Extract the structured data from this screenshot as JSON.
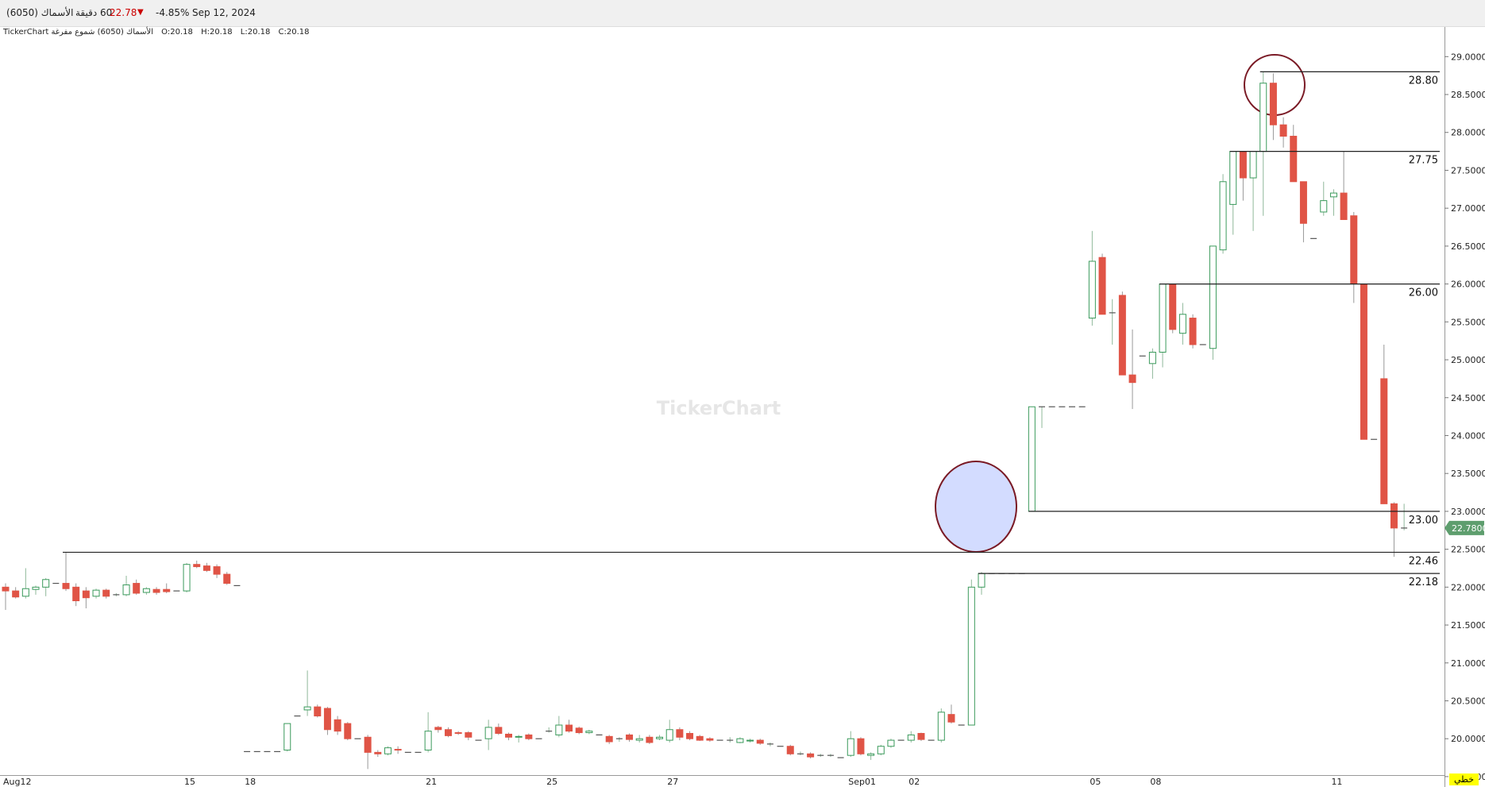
{
  "header": {
    "symbol": "الأسماك (6050)",
    "interval": "60 دقيقة",
    "price": "22.78",
    "change": "-4.85%",
    "date": "Sep 12, 2024",
    "legend": "TickerChart الأسماك (6050) شموع مفرغة",
    "open": "O:20.18",
    "high": "H:20.18",
    "low": "L:20.18",
    "close": "C:20.18"
  },
  "watermark": "TickerChart",
  "mode_button": "خطي",
  "chart_data": {
    "type": "candlestick",
    "up_color": "#3a9a5b",
    "down_color": "#e05446",
    "flat_color": "#555555",
    "ylim": [
      19.52,
      29.37
    ],
    "yticks": [
      {
        "value": 19.5,
        "label": "19.5000"
      },
      {
        "value": 20,
        "label": "20.0000"
      },
      {
        "value": 20.5,
        "label": "20.5000"
      },
      {
        "value": 21,
        "label": "21.0000"
      },
      {
        "value": 21.5,
        "label": "21.5000"
      },
      {
        "value": 22,
        "label": "22.0000"
      },
      {
        "value": 22.5,
        "label": "22.5000"
      },
      {
        "value": 23,
        "label": "23.0000"
      },
      {
        "value": 23.5,
        "label": "23.5000"
      },
      {
        "value": 24,
        "label": "24.0000"
      },
      {
        "value": 24.5,
        "label": "24.5000"
      },
      {
        "value": 25,
        "label": "25.0000"
      },
      {
        "value": 25.5,
        "label": "25.5000"
      },
      {
        "value": 26,
        "label": "26.0000"
      },
      {
        "value": 26.5,
        "label": "26.5000"
      },
      {
        "value": 27,
        "label": "27.0000"
      },
      {
        "value": 27.5,
        "label": "27.5000"
      },
      {
        "value": 28,
        "label": "28.0000"
      },
      {
        "value": 28.5,
        "label": "28.5000"
      },
      {
        "value": 29,
        "label": "29.0000"
      }
    ],
    "last_price": {
      "value": 22.78,
      "label": "22.7800",
      "color": "#5e9e6e"
    },
    "levels": [
      {
        "value": 28.8,
        "label": "28.80"
      },
      {
        "value": 27.75,
        "label": "27.75"
      },
      {
        "value": 26,
        "label": "26.00"
      },
      {
        "value": 23,
        "label": "23.00"
      },
      {
        "value": 22.46,
        "label": "22.46"
      },
      {
        "value": 22.18,
        "label": "22.18"
      }
    ],
    "categories": [
      "Aug12",
      null,
      null,
      null,
      null,
      null,
      null,
      null,
      null,
      null,
      null,
      null,
      null,
      null,
      null,
      null,
      null,
      null,
      "15",
      null,
      null,
      null,
      null,
      null,
      "18",
      null,
      null,
      null,
      null,
      null,
      null,
      null,
      null,
      null,
      null,
      null,
      null,
      null,
      null,
      null,
      null,
      null,
      "21",
      null,
      null,
      null,
      null,
      null,
      null,
      null,
      null,
      null,
      null,
      null,
      "25",
      null,
      null,
      null,
      null,
      null,
      null,
      null,
      null,
      null,
      null,
      null,
      "27",
      null,
      null,
      null,
      null,
      null,
      null,
      null,
      null,
      null,
      null,
      null,
      null,
      null,
      null,
      null,
      null,
      null,
      "Sep01",
      null,
      null,
      null,
      null,
      null,
      "02",
      null,
      null,
      null,
      null,
      null,
      null,
      null,
      null,
      null,
      null,
      null,
      null,
      null,
      null,
      null,
      null,
      null,
      "05",
      null,
      null,
      null,
      null,
      null,
      "08",
      null,
      null,
      null,
      null,
      null,
      null,
      null,
      null,
      null,
      null,
      null,
      null,
      null,
      null,
      null,
      null,
      null,
      "11",
      null,
      null,
      null,
      null,
      null,
      null,
      null
    ],
    "ohlc": [
      [
        22.0,
        22.05,
        21.7,
        21.95
      ],
      [
        21.95,
        22.0,
        21.85,
        21.87
      ],
      [
        21.88,
        22.25,
        21.85,
        21.98
      ],
      [
        21.97,
        22.02,
        21.9,
        22.0
      ],
      [
        22.0,
        22.12,
        21.88,
        22.1
      ],
      [
        22.05,
        22.05,
        22.05,
        22.05
      ],
      [
        22.05,
        22.46,
        21.95,
        21.98
      ],
      [
        22.0,
        22.05,
        21.75,
        21.82
      ],
      [
        21.95,
        22.0,
        21.72,
        21.86
      ],
      [
        21.88,
        21.98,
        21.85,
        21.96
      ],
      [
        21.96,
        21.98,
        21.85,
        21.88
      ],
      [
        21.9,
        21.92,
        21.88,
        21.9
      ],
      [
        21.9,
        22.15,
        21.88,
        22.03
      ],
      [
        22.05,
        22.1,
        21.9,
        21.92
      ],
      [
        21.93,
        22.0,
        21.9,
        21.98
      ],
      [
        21.97,
        22.0,
        21.9,
        21.93
      ],
      [
        21.97,
        22.05,
        21.92,
        21.94
      ],
      [
        21.95,
        21.95,
        21.95,
        21.95
      ],
      [
        21.95,
        22.32,
        21.93,
        22.3
      ],
      [
        22.3,
        22.35,
        22.25,
        22.27
      ],
      [
        22.28,
        22.32,
        22.2,
        22.22
      ],
      [
        22.27,
        22.3,
        22.12,
        22.17
      ],
      [
        22.17,
        22.2,
        22.03,
        22.05
      ],
      [
        22.02,
        22.02,
        22.02,
        22.02
      ],
      [
        19.83,
        19.83,
        19.83,
        19.83
      ],
      [
        19.83,
        19.83,
        19.83,
        19.83
      ],
      [
        19.83,
        19.83,
        19.83,
        19.83
      ],
      [
        19.83,
        19.83,
        19.83,
        19.83
      ],
      [
        19.85,
        20.2,
        19.83,
        20.2
      ],
      [
        20.3,
        20.3,
        20.3,
        20.3
      ],
      [
        20.38,
        20.9,
        20.3,
        20.42
      ],
      [
        20.42,
        20.45,
        20.28,
        20.3
      ],
      [
        20.4,
        20.42,
        20.05,
        20.12
      ],
      [
        20.25,
        20.3,
        20.05,
        20.1
      ],
      [
        20.2,
        20.22,
        19.98,
        20.0
      ],
      [
        20.0,
        20.0,
        20.0,
        20.0
      ],
      [
        20.02,
        20.05,
        19.6,
        19.82
      ],
      [
        19.82,
        19.85,
        19.76,
        19.8
      ],
      [
        19.8,
        19.9,
        19.78,
        19.88
      ],
      [
        19.86,
        19.9,
        19.8,
        19.85
      ],
      [
        19.82,
        19.82,
        19.82,
        19.82
      ],
      [
        19.82,
        19.82,
        19.82,
        19.82
      ],
      [
        19.85,
        20.35,
        19.82,
        20.1
      ],
      [
        20.15,
        20.17,
        20.08,
        20.12
      ],
      [
        20.12,
        20.15,
        20.02,
        20.04
      ],
      [
        20.08,
        20.1,
        20.05,
        20.07
      ],
      [
        20.08,
        20.1,
        19.98,
        20.02
      ],
      [
        19.98,
        19.98,
        19.98,
        19.98
      ],
      [
        20.0,
        20.25,
        19.85,
        20.15
      ],
      [
        20.15,
        20.2,
        20.05,
        20.07
      ],
      [
        20.06,
        20.08,
        19.98,
        20.02
      ],
      [
        20.02,
        20.05,
        19.95,
        20.03
      ],
      [
        20.05,
        20.07,
        19.98,
        20.0
      ],
      [
        20.0,
        20.0,
        20.0,
        20.0
      ],
      [
        20.1,
        20.15,
        20.08,
        20.1
      ],
      [
        20.05,
        20.3,
        20.02,
        20.18
      ],
      [
        20.18,
        20.25,
        20.08,
        20.1
      ],
      [
        20.14,
        20.16,
        20.06,
        20.08
      ],
      [
        20.08,
        20.12,
        20.06,
        20.1
      ],
      [
        20.05,
        20.05,
        20.05,
        20.05
      ],
      [
        20.03,
        20.05,
        19.93,
        19.96
      ],
      [
        20.0,
        20.02,
        19.96,
        20.0
      ],
      [
        20.05,
        20.07,
        19.96,
        19.99
      ],
      [
        19.98,
        20.05,
        19.95,
        20.0
      ],
      [
        20.02,
        20.05,
        19.93,
        19.95
      ],
      [
        20.0,
        20.05,
        19.98,
        20.02
      ],
      [
        19.98,
        20.25,
        19.95,
        20.12
      ],
      [
        20.12,
        20.15,
        19.98,
        20.02
      ],
      [
        20.07,
        20.1,
        19.98,
        20.0
      ],
      [
        20.03,
        20.05,
        19.97,
        19.98
      ],
      [
        20.0,
        20.02,
        19.96,
        19.98
      ],
      [
        19.98,
        19.98,
        19.98,
        19.98
      ],
      [
        19.98,
        20.02,
        19.95,
        19.98
      ],
      [
        19.95,
        20.02,
        19.94,
        20.0
      ],
      [
        19.97,
        20.0,
        19.95,
        19.98
      ],
      [
        19.98,
        20.0,
        19.92,
        19.94
      ],
      [
        19.93,
        19.95,
        19.9,
        19.93
      ],
      [
        19.9,
        19.9,
        19.9,
        19.9
      ],
      [
        19.9,
        19.92,
        19.78,
        19.8
      ],
      [
        19.8,
        19.83,
        19.78,
        19.8
      ],
      [
        19.8,
        19.82,
        19.74,
        19.76
      ],
      [
        19.78,
        19.8,
        19.76,
        19.78
      ],
      [
        19.78,
        19.8,
        19.76,
        19.78
      ],
      [
        19.75,
        19.75,
        19.75,
        19.75
      ],
      [
        19.78,
        20.1,
        19.76,
        20.0
      ],
      [
        20.0,
        20.02,
        19.78,
        19.8
      ],
      [
        19.78,
        19.82,
        19.72,
        19.8
      ],
      [
        19.8,
        19.92,
        19.78,
        19.9
      ],
      [
        19.9,
        20.0,
        19.88,
        19.98
      ],
      [
        19.98,
        19.98,
        19.98,
        19.98
      ],
      [
        19.98,
        20.1,
        19.95,
        20.05
      ],
      [
        20.07,
        20.08,
        19.97,
        19.99
      ],
      [
        19.98,
        19.98,
        19.98,
        19.98
      ],
      [
        19.98,
        20.4,
        19.95,
        20.35
      ],
      [
        20.32,
        20.45,
        20.2,
        20.22
      ],
      [
        20.18,
        20.18,
        20.18,
        20.18
      ],
      [
        20.18,
        22.1,
        20.18,
        22.0
      ],
      [
        22.0,
        22.2,
        21.9,
        22.18
      ],
      [
        22.18,
        22.18,
        22.18,
        22.18
      ],
      [
        22.18,
        22.18,
        22.18,
        22.18
      ],
      [
        22.18,
        22.18,
        22.18,
        22.18
      ],
      [
        22.18,
        22.18,
        22.18,
        22.18
      ],
      [
        23.0,
        24.38,
        23.0,
        24.38
      ],
      [
        24.38,
        24.38,
        24.1,
        24.38
      ],
      [
        24.38,
        24.38,
        24.38,
        24.38
      ],
      [
        24.38,
        24.38,
        24.38,
        24.38
      ],
      [
        24.38,
        24.38,
        24.38,
        24.38
      ],
      [
        24.38,
        24.38,
        24.38,
        24.38
      ],
      [
        25.55,
        26.7,
        25.45,
        26.3
      ],
      [
        26.35,
        26.4,
        25.6,
        25.6
      ],
      [
        25.62,
        25.8,
        25.2,
        25.62
      ],
      [
        25.85,
        25.9,
        24.8,
        24.8
      ],
      [
        24.8,
        25.4,
        24.35,
        24.7
      ],
      [
        25.05,
        25.05,
        25.05,
        25.05
      ],
      [
        24.95,
        25.15,
        24.75,
        25.1
      ],
      [
        25.1,
        26.0,
        24.9,
        26.0
      ],
      [
        26.0,
        26.0,
        25.35,
        25.4
      ],
      [
        25.35,
        25.75,
        25.2,
        25.6
      ],
      [
        25.55,
        25.6,
        25.15,
        25.2
      ],
      [
        25.2,
        25.2,
        25.2,
        25.2
      ],
      [
        25.15,
        26.5,
        25.0,
        26.5
      ],
      [
        26.45,
        27.45,
        26.4,
        27.35
      ],
      [
        27.05,
        27.75,
        26.65,
        27.75
      ],
      [
        27.75,
        27.75,
        27.1,
        27.4
      ],
      [
        27.4,
        27.75,
        26.7,
        27.75
      ],
      [
        27.75,
        28.8,
        26.9,
        28.65
      ],
      [
        28.65,
        28.78,
        27.9,
        28.1
      ],
      [
        28.1,
        28.2,
        27.8,
        27.95
      ],
      [
        27.95,
        28.1,
        27.35,
        27.35
      ],
      [
        27.35,
        27.35,
        26.55,
        26.8
      ],
      [
        26.6,
        26.6,
        26.6,
        26.6
      ],
      [
        26.95,
        27.35,
        26.9,
        27.1
      ],
      [
        27.15,
        27.25,
        26.9,
        27.2
      ],
      [
        27.2,
        27.75,
        26.85,
        26.85
      ],
      [
        26.9,
        26.95,
        25.75,
        26.0
      ],
      [
        26.0,
        26.0,
        23.95,
        23.95
      ],
      [
        23.95,
        23.95,
        23.95,
        23.95
      ],
      [
        24.75,
        25.2,
        23.1,
        23.1
      ],
      [
        23.1,
        23.12,
        22.4,
        22.78
      ],
      [
        22.78,
        23.1,
        22.75,
        22.78
      ]
    ]
  }
}
